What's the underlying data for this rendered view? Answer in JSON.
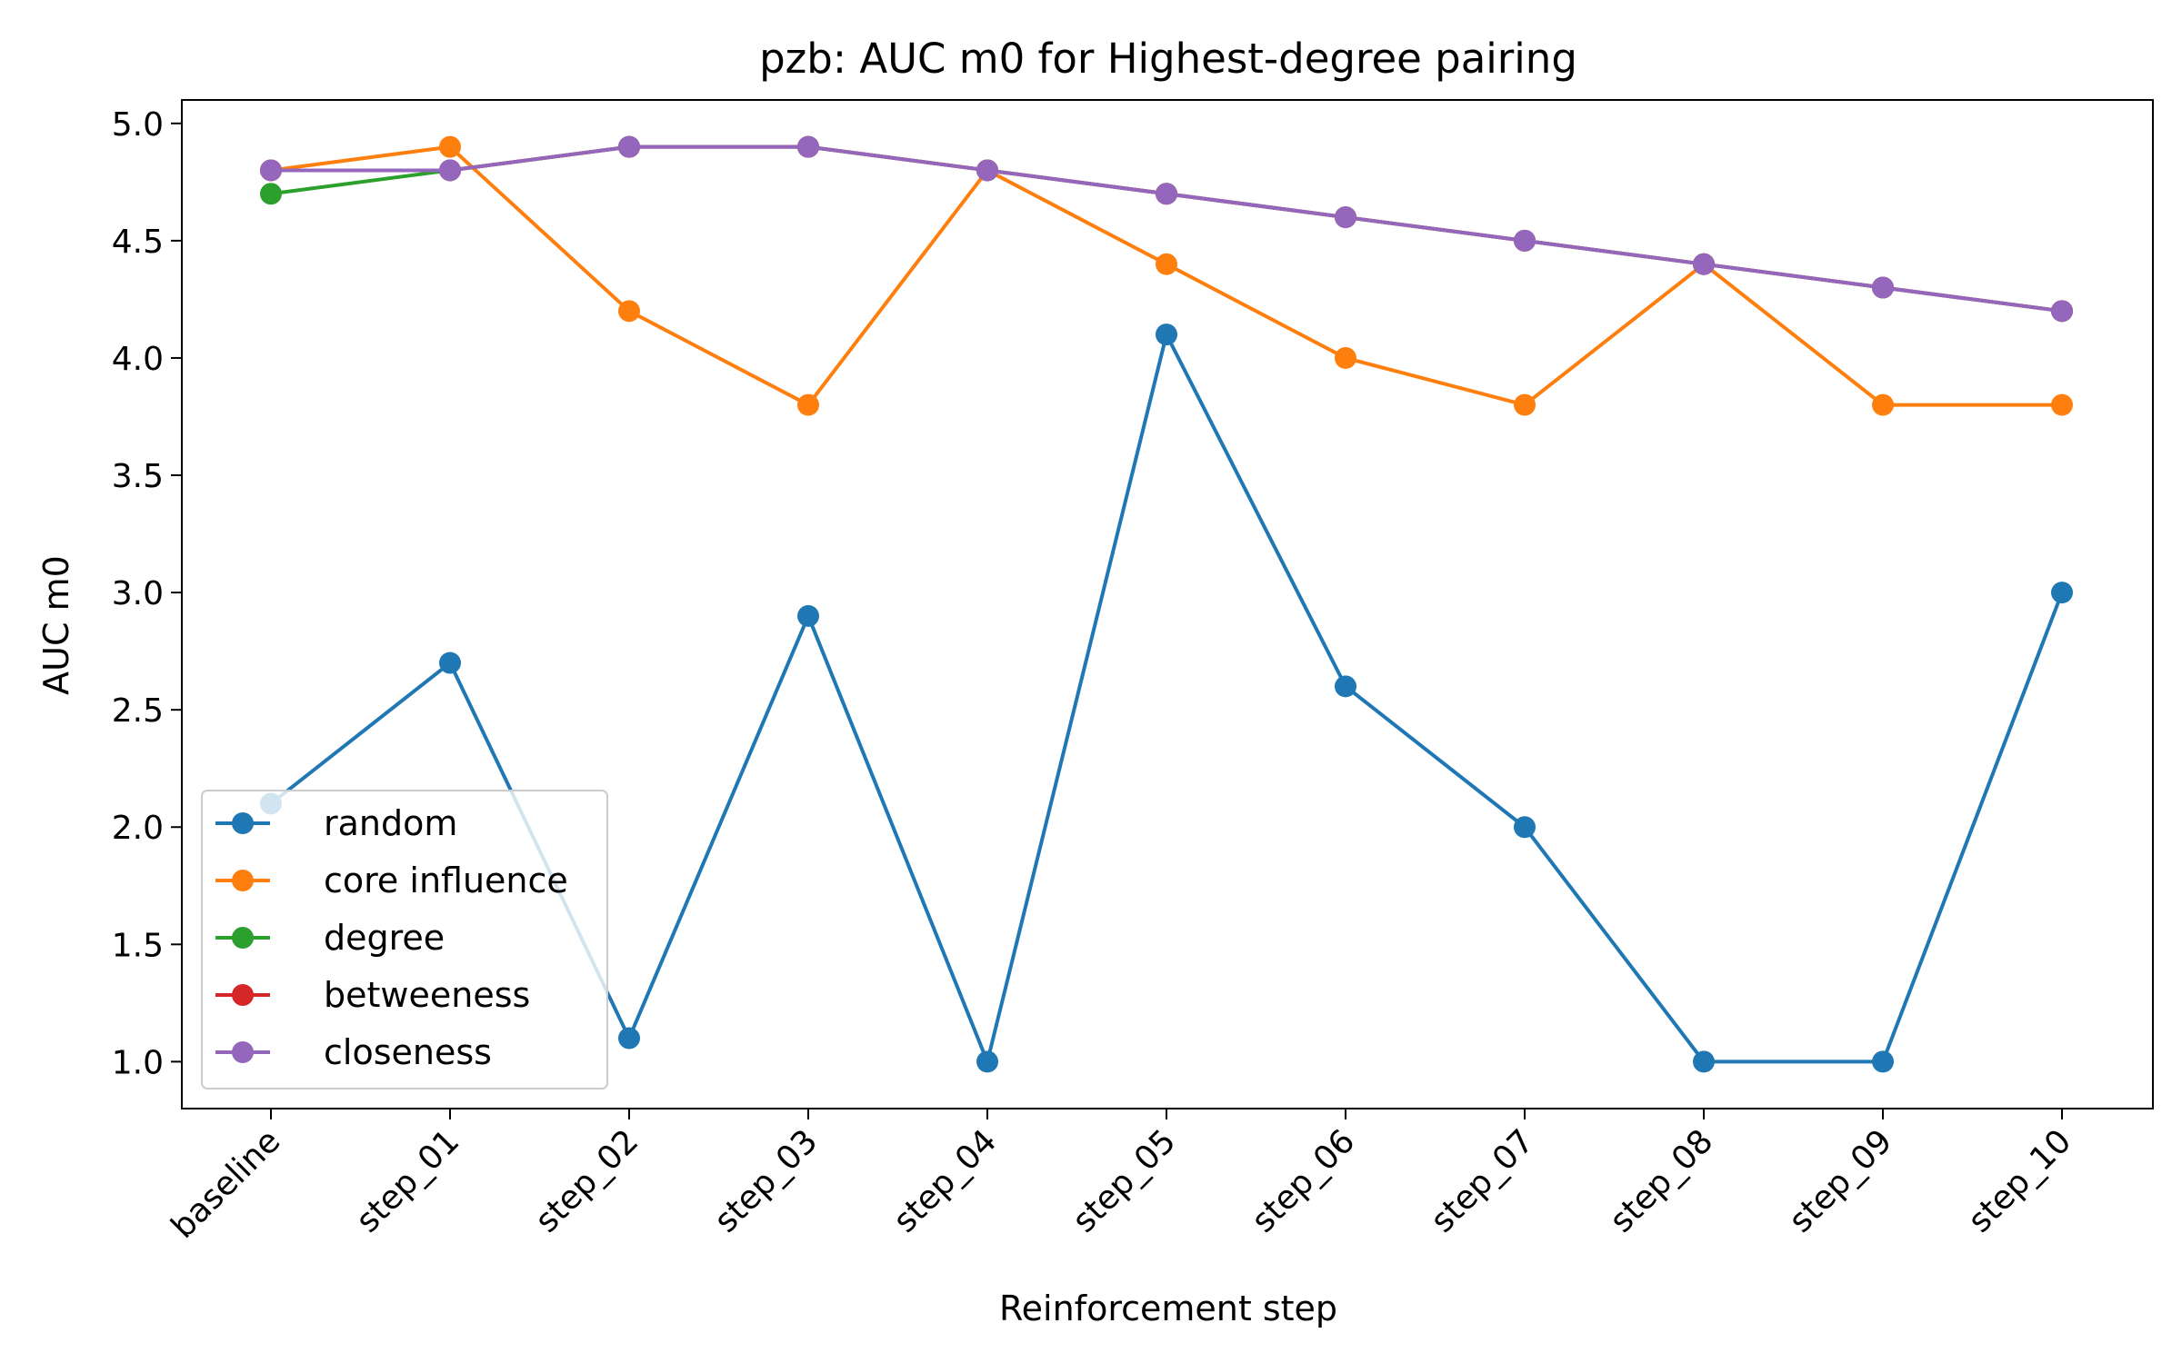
{
  "chart_data": {
    "type": "line",
    "title": "pzb: AUC m0 for Highest-degree pairing",
    "xlabel": "Reinforcement step",
    "ylabel": "AUC m0",
    "categories": [
      "baseline",
      "step_01",
      "step_02",
      "step_03",
      "step_04",
      "step_05",
      "step_06",
      "step_07",
      "step_08",
      "step_09",
      "step_10"
    ],
    "ylim": [
      0.8,
      5.1
    ],
    "yticks": [
      "1.0",
      "1.5",
      "2.0",
      "2.5",
      "3.0",
      "3.5",
      "4.0",
      "4.5",
      "5.0"
    ],
    "grid": false,
    "legend_position": "lower-left",
    "series": [
      {
        "name": "random",
        "color": "#1f77b4",
        "values": [
          2.1,
          2.7,
          1.1,
          2.9,
          1.0,
          4.1,
          2.6,
          2.0,
          1.0,
          1.0,
          3.0
        ]
      },
      {
        "name": "core influence",
        "color": "#ff7f0e",
        "values": [
          4.8,
          4.9,
          4.2,
          3.8,
          4.8,
          4.4,
          4.0,
          3.8,
          4.4,
          3.8,
          3.8
        ]
      },
      {
        "name": "degree",
        "color": "#2ca02c",
        "values": [
          4.7,
          4.8,
          4.9,
          4.9,
          4.8,
          4.7,
          4.6,
          4.5,
          4.4,
          4.3,
          4.2
        ]
      },
      {
        "name": "betweeness",
        "color": "#d62728",
        "values": [
          4.8,
          4.8,
          4.9,
          4.9,
          4.8,
          4.7,
          4.6,
          4.5,
          4.4,
          4.3,
          4.2
        ]
      },
      {
        "name": "closeness",
        "color": "#9467bd",
        "values": [
          4.8,
          4.8,
          4.9,
          4.9,
          4.8,
          4.7,
          4.6,
          4.5,
          4.4,
          4.3,
          4.2
        ]
      }
    ]
  }
}
